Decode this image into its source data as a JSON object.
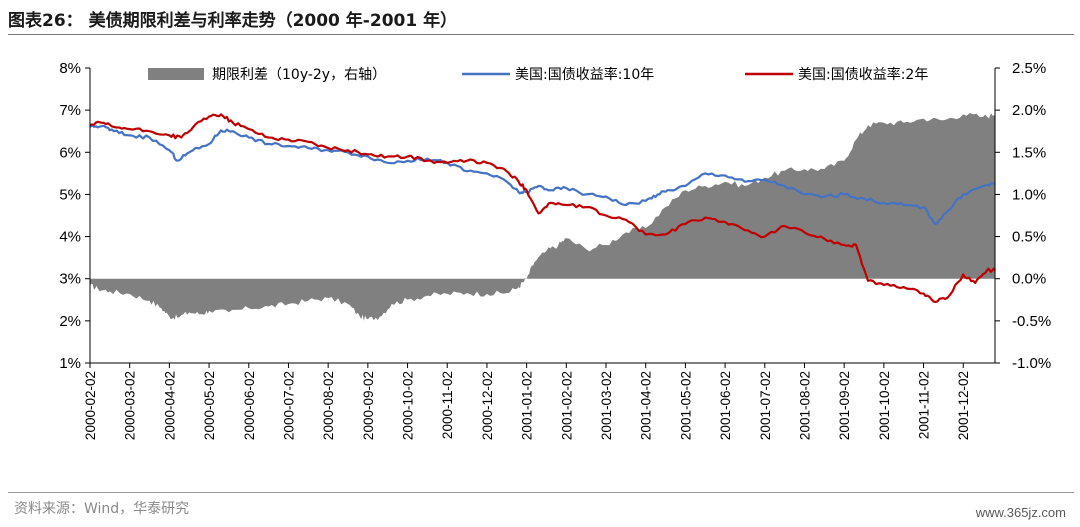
{
  "title": "图表26： 美债期限利差与利率走势（2000 年-2001 年）",
  "source": "资料来源：Wind，华泰研究",
  "watermark": "www.365jz.com",
  "chart_data": {
    "type": "area+line",
    "title": "图表26： 美债期限利差与利率走势（2000 年-2001 年）",
    "left_axis": {
      "ylim": [
        1,
        8
      ],
      "ticks": [
        "1%",
        "2%",
        "3%",
        "4%",
        "5%",
        "6%",
        "7%",
        "8%"
      ]
    },
    "right_axis": {
      "ylim": [
        -1.0,
        2.5
      ],
      "ticks": [
        "-1.0%",
        "-0.5%",
        "0.0%",
        "0.5%",
        "1.0%",
        "1.5%",
        "2.0%",
        "2.5%"
      ]
    },
    "x_categories": [
      "2000-02-02",
      "2000-03-02",
      "2000-04-02",
      "2000-05-02",
      "2000-06-02",
      "2000-07-02",
      "2000-08-02",
      "2000-09-02",
      "2000-10-02",
      "2000-11-02",
      "2000-12-02",
      "2001-01-02",
      "2001-02-02",
      "2001-03-02",
      "2001-04-02",
      "2001-05-02",
      "2001-06-02",
      "2001-07-02",
      "2001-08-02",
      "2001-09-02",
      "2001-10-02",
      "2001-11-02",
      "2001-12-02"
    ],
    "legend_position": "top",
    "series": [
      {
        "name": "期限利差（10y-2y，右轴）",
        "type": "area",
        "axis": "right",
        "color": "#808080",
        "x": [
          0,
          0.2,
          0.5,
          1.0,
          1.5,
          1.8,
          2.0,
          2.2,
          2.5,
          2.8,
          3.0,
          3.5,
          4.0,
          4.5,
          5.0,
          5.5,
          6.0,
          6.5,
          6.8,
          7.0,
          7.3,
          7.6,
          8.0,
          8.5,
          9.0,
          9.5,
          10.0,
          10.5,
          10.8,
          11.0,
          11.2,
          11.5,
          11.8,
          12.0,
          12.5,
          13.0,
          13.5,
          14.0,
          14.5,
          15.0,
          15.5,
          16.0,
          16.5,
          17.0,
          17.5,
          18.0,
          18.5,
          19.0,
          19.3,
          19.6,
          20.0,
          20.5,
          21.0,
          21.5,
          22.0,
          22.5,
          22.8
        ],
        "y": [
          -0.08,
          -0.12,
          -0.15,
          -0.18,
          -0.26,
          -0.35,
          -0.45,
          -0.46,
          -0.4,
          -0.42,
          -0.38,
          -0.4,
          -0.35,
          -0.33,
          -0.3,
          -0.26,
          -0.23,
          -0.3,
          -0.45,
          -0.48,
          -0.45,
          -0.3,
          -0.25,
          -0.2,
          -0.18,
          -0.17,
          -0.18,
          -0.17,
          -0.1,
          0.0,
          0.2,
          0.33,
          0.4,
          0.48,
          0.35,
          0.4,
          0.55,
          0.6,
          0.85,
          1.05,
          1.1,
          1.15,
          1.1,
          1.2,
          1.28,
          1.3,
          1.3,
          1.4,
          1.65,
          1.82,
          1.85,
          1.85,
          1.9,
          1.88,
          1.95,
          1.92,
          1.95
        ]
      },
      {
        "name": "美国:国债收益率:10年",
        "type": "line",
        "axis": "left",
        "color": "#4472C4",
        "x": [
          0,
          0.3,
          0.6,
          1.0,
          1.5,
          2.0,
          2.2,
          2.5,
          3.0,
          3.3,
          3.6,
          4.0,
          4.5,
          5.0,
          5.5,
          6.0,
          6.5,
          7.0,
          7.5,
          8.0,
          8.5,
          9.0,
          9.5,
          10.0,
          10.5,
          10.8,
          11.0,
          11.3,
          11.6,
          12.0,
          12.5,
          13.0,
          13.5,
          14.0,
          14.3,
          14.6,
          15.0,
          15.5,
          16.0,
          16.5,
          17.0,
          17.5,
          18.0,
          18.5,
          19.0,
          19.5,
          20.0,
          20.5,
          21.0,
          21.3,
          21.6,
          22.0,
          22.5,
          22.8
        ],
        "y": [
          6.6,
          6.62,
          6.5,
          6.4,
          6.35,
          6.05,
          5.8,
          6.0,
          6.2,
          6.52,
          6.5,
          6.35,
          6.2,
          6.15,
          6.1,
          6.05,
          6.0,
          5.9,
          5.75,
          5.8,
          5.85,
          5.75,
          5.55,
          5.5,
          5.3,
          5.05,
          5.05,
          5.2,
          5.1,
          5.15,
          5.0,
          4.95,
          4.75,
          4.85,
          5.0,
          5.1,
          5.2,
          5.5,
          5.45,
          5.3,
          5.35,
          5.2,
          5.0,
          4.95,
          5.0,
          4.9,
          4.8,
          4.75,
          4.7,
          4.3,
          4.6,
          5.0,
          5.2,
          5.25
        ]
      },
      {
        "name": "美国:国债收益率:2年",
        "type": "line",
        "axis": "left",
        "color": "#C00000",
        "x": [
          0,
          0.3,
          0.6,
          1.0,
          1.5,
          2.0,
          2.3,
          2.6,
          3.0,
          3.3,
          3.6,
          4.0,
          4.5,
          5.0,
          5.5,
          6.0,
          6.5,
          7.0,
          7.5,
          8.0,
          8.5,
          9.0,
          9.5,
          10.0,
          10.5,
          10.8,
          11.0,
          11.3,
          11.6,
          12.0,
          12.5,
          13.0,
          13.5,
          14.0,
          14.5,
          15.0,
          15.5,
          16.0,
          16.5,
          17.0,
          17.5,
          18.0,
          18.5,
          19.0,
          19.3,
          19.6,
          20.0,
          20.5,
          21.0,
          21.3,
          21.6,
          22.0,
          22.3,
          22.6,
          22.8
        ],
        "y": [
          6.65,
          6.7,
          6.6,
          6.55,
          6.5,
          6.4,
          6.35,
          6.6,
          6.85,
          6.9,
          6.7,
          6.55,
          6.35,
          6.3,
          6.25,
          6.1,
          6.05,
          5.95,
          5.9,
          5.9,
          5.8,
          5.75,
          5.8,
          5.75,
          5.55,
          5.3,
          5.1,
          4.55,
          4.8,
          4.75,
          4.7,
          4.5,
          4.4,
          4.05,
          4.05,
          4.3,
          4.45,
          4.35,
          4.15,
          4.0,
          4.25,
          4.1,
          3.95,
          3.8,
          3.8,
          2.95,
          2.85,
          2.8,
          2.65,
          2.45,
          2.55,
          3.1,
          2.9,
          3.2,
          3.2
        ]
      }
    ]
  }
}
